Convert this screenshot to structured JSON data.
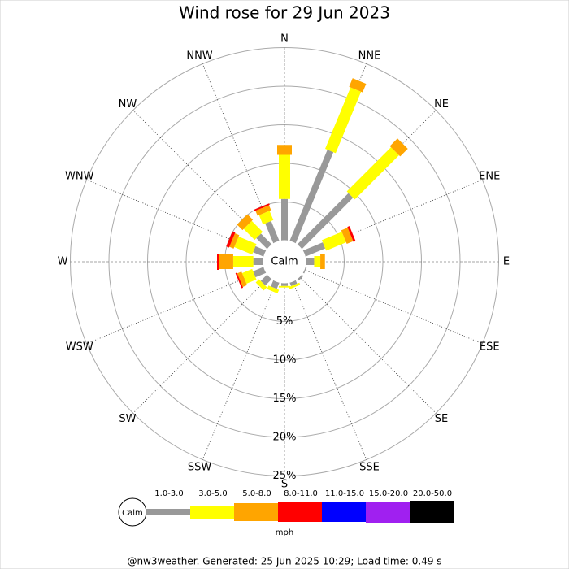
{
  "chart_data": {
    "type": "windrose",
    "title": "Wind rose for 29 Jun 2023",
    "categories": [
      "N",
      "NNE",
      "NE",
      "ENE",
      "E",
      "ESE",
      "SE",
      "SSE",
      "S",
      "SSW",
      "SW",
      "WSW",
      "W",
      "WNW",
      "NW",
      "NNW"
    ],
    "series": [
      {
        "name": "1.0-3.0",
        "color": "#999999",
        "values": [
          5.4,
          12.8,
          9.4,
          2.8,
          1.1,
          0.2,
          0.3,
          0.5,
          0.4,
          0.9,
          1.2,
          1.5,
          1.3,
          1.5,
          2.0,
          2.8
        ]
      },
      {
        "name": "3.0-5.0",
        "color": "#ffff00",
        "values": [
          5.7,
          8.6,
          8.1,
          2.8,
          0.8,
          0,
          0,
          0.3,
          0.2,
          0.5,
          0.6,
          1.4,
          2.6,
          2.5,
          2.0,
          1.3
        ]
      },
      {
        "name": "5.0-8.0",
        "color": "#ffa500",
        "values": [
          1.3,
          1.2,
          1.4,
          0.9,
          0.6,
          0,
          0,
          0,
          0,
          0,
          0,
          0.6,
          1.8,
          0.6,
          1.0,
          0.7
        ]
      },
      {
        "name": "8.0-11.0",
        "color": "#ff0000",
        "values": [
          0,
          0,
          0,
          0.3,
          0,
          0,
          0,
          0,
          0,
          0,
          0,
          0.2,
          0.3,
          0.4,
          0,
          0.2
        ]
      },
      {
        "name": "11.0-15.0",
        "color": "#0000ff",
        "values": [
          0,
          0,
          0,
          0,
          0,
          0,
          0,
          0,
          0,
          0,
          0,
          0,
          0,
          0,
          0,
          0
        ]
      },
      {
        "name": "15.0-20.0",
        "color": "#a020f0",
        "values": [
          0,
          0,
          0,
          0,
          0,
          0,
          0,
          0,
          0,
          0,
          0,
          0,
          0,
          0,
          0,
          0
        ]
      },
      {
        "name": "20.0-50.0",
        "color": "#000000",
        "values": [
          0,
          0,
          0,
          0,
          0,
          0,
          0,
          0,
          0,
          0,
          0,
          0,
          0,
          0,
          0,
          0
        ]
      }
    ],
    "rlim": [
      0,
      25
    ],
    "rticks": [
      {
        "value": 5,
        "label": "5%"
      },
      {
        "value": 10,
        "label": "10%"
      },
      {
        "value": 15,
        "label": "15%"
      },
      {
        "value": 20,
        "label": "20%"
      },
      {
        "value": 25,
        "label": "25%"
      }
    ],
    "calm_label": "Calm",
    "unit": "mph",
    "footer": "@nw3weather. Generated: 25 Jun 2025 10:29; Load time: 0.49 s"
  }
}
